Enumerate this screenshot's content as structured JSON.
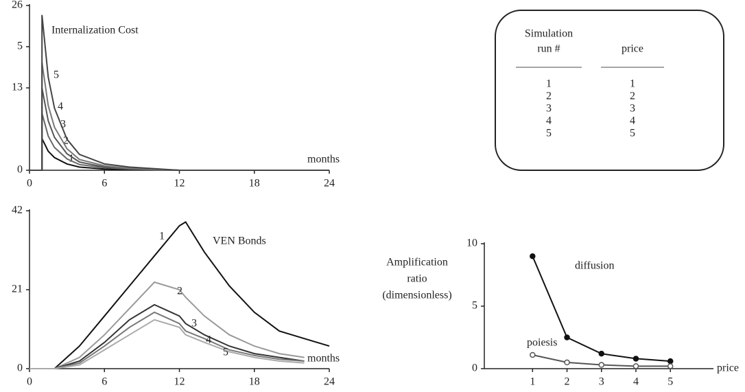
{
  "chart_data": [
    {
      "type": "line",
      "title": "Internalization Cost",
      "xlabel": "months",
      "x": [
        0,
        1,
        1,
        1.5,
        2,
        3,
        4,
        6,
        8,
        12,
        24
      ],
      "xlim": [
        0,
        24
      ],
      "xticks": [
        0,
        6,
        12,
        18,
        24
      ],
      "ylim": [
        0,
        26
      ],
      "yticks": [
        0,
        13,
        {
          "value": 19.5,
          "label": "5"
        },
        26
      ],
      "series": [
        {
          "name": "1",
          "color": "#111111",
          "values": [
            0,
            0,
            5,
            3,
            2,
            1,
            0.5,
            0.2,
            0.1,
            0,
            0
          ]
        },
        {
          "name": "2",
          "color": "#666666",
          "values": [
            0,
            0,
            9,
            5.4,
            3.6,
            1.8,
            0.9,
            0.4,
            0.2,
            0,
            0
          ]
        },
        {
          "name": "3",
          "color": "#555555",
          "values": [
            0,
            0,
            13,
            7.8,
            5.2,
            2.6,
            1.3,
            0.5,
            0.3,
            0,
            0
          ]
        },
        {
          "name": "4",
          "color": "#777777",
          "values": [
            0,
            0,
            17,
            10.2,
            6.8,
            3.4,
            1.7,
            0.7,
            0.3,
            0,
            0
          ]
        },
        {
          "name": "5",
          "color": "#444444",
          "values": [
            0,
            0,
            24.5,
            14.7,
            9.8,
            4.9,
            2.5,
            1,
            0.5,
            0,
            0
          ]
        }
      ]
    },
    {
      "type": "line",
      "title": "VEN Bonds",
      "xlabel": "months",
      "x": [
        0,
        2,
        4,
        6,
        8,
        10,
        12,
        12.5,
        14,
        16,
        18,
        20,
        22,
        24
      ],
      "xlim": [
        0,
        24
      ],
      "xticks": [
        0,
        6,
        12,
        18,
        24
      ],
      "ylim": [
        0,
        42
      ],
      "yticks": [
        0,
        21,
        42
      ],
      "series": [
        {
          "name": "1",
          "color": "#111111",
          "values": [
            0,
            0,
            6,
            14,
            22,
            30,
            38,
            39,
            31,
            22,
            15,
            10,
            8,
            6
          ]
        },
        {
          "name": "2",
          "color": "#999999",
          "values": [
            0,
            0,
            3,
            9,
            16,
            23,
            21,
            19,
            14,
            9,
            6,
            4,
            3,
            null
          ]
        },
        {
          "name": "3",
          "color": "#333333",
          "values": [
            0,
            0,
            2,
            7,
            13,
            17,
            14,
            12,
            9,
            6,
            4,
            3,
            2,
            null
          ]
        },
        {
          "name": "4",
          "color": "#777777",
          "values": [
            0,
            0,
            1.5,
            6,
            11,
            15,
            12,
            10,
            8,
            5,
            3.5,
            2.5,
            2,
            null
          ]
        },
        {
          "name": "5",
          "color": "#aaaaaa",
          "values": [
            0,
            0,
            1,
            5,
            9,
            13,
            11,
            9,
            7,
            4.5,
            3,
            2,
            1.5,
            null
          ]
        }
      ]
    },
    {
      "type": "line",
      "xlabel": "price",
      "ylabel": [
        "Amplification",
        "ratio",
        "(dimensionless)"
      ],
      "x": [
        1,
        2,
        3,
        4,
        5
      ],
      "xlim": [
        -0.4,
        6.25
      ],
      "xticks": [
        1,
        2,
        3,
        4,
        5
      ],
      "ylim": [
        0,
        10
      ],
      "yticks": [
        0,
        5,
        10
      ],
      "markers": true,
      "series": [
        {
          "name": "diffusion",
          "color": "#111111",
          "marker_fill": "#111111",
          "values": [
            9,
            2.5,
            1.2,
            0.8,
            0.6
          ]
        },
        {
          "name": "poiesis",
          "color": "#555555",
          "marker_fill": "#ffffff",
          "values": [
            1.1,
            0.5,
            0.3,
            0.2,
            0.2
          ]
        }
      ]
    }
  ],
  "table": {
    "header": [
      [
        "Simulation",
        "run #"
      ],
      [
        "price"
      ]
    ],
    "rows": [
      [
        "1",
        "1"
      ],
      [
        "2",
        "2"
      ],
      [
        "3",
        "3"
      ],
      [
        "4",
        "4"
      ],
      [
        "5",
        "5"
      ]
    ]
  }
}
